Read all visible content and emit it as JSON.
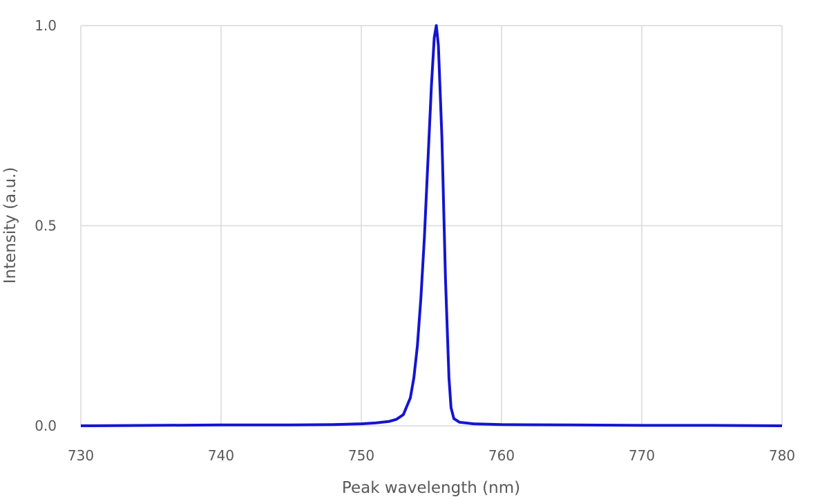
{
  "chart_data": {
    "type": "line",
    "title": "",
    "xlabel": "Peak wavelength (nm)",
    "ylabel": "Intensity (a.u.)",
    "xlim": [
      730,
      780
    ],
    "ylim": [
      0,
      1.0
    ],
    "xticks": [
      "730",
      "740",
      "750",
      "760",
      "770",
      "780"
    ],
    "yticks": [
      "0.0",
      "0.5",
      "1.0"
    ],
    "grid": true,
    "legend": "none",
    "series": [
      {
        "color": "#1414d2",
        "x": [
          730,
          735,
          740,
          745,
          748,
          750,
          751,
          752,
          752.5,
          753,
          753.5,
          753.75,
          754,
          754.25,
          754.5,
          754.75,
          755,
          755.2,
          755.35,
          755.5,
          755.75,
          756,
          756.25,
          756.4,
          756.6,
          757,
          758,
          760,
          765,
          770,
          775,
          780
        ],
        "y": [
          0.0,
          0.001,
          0.002,
          0.002,
          0.003,
          0.005,
          0.007,
          0.011,
          0.016,
          0.028,
          0.07,
          0.12,
          0.2,
          0.32,
          0.47,
          0.66,
          0.85,
          0.97,
          1.0,
          0.95,
          0.72,
          0.37,
          0.12,
          0.045,
          0.018,
          0.009,
          0.005,
          0.003,
          0.002,
          0.001,
          0.001,
          0.0
        ]
      }
    ]
  }
}
